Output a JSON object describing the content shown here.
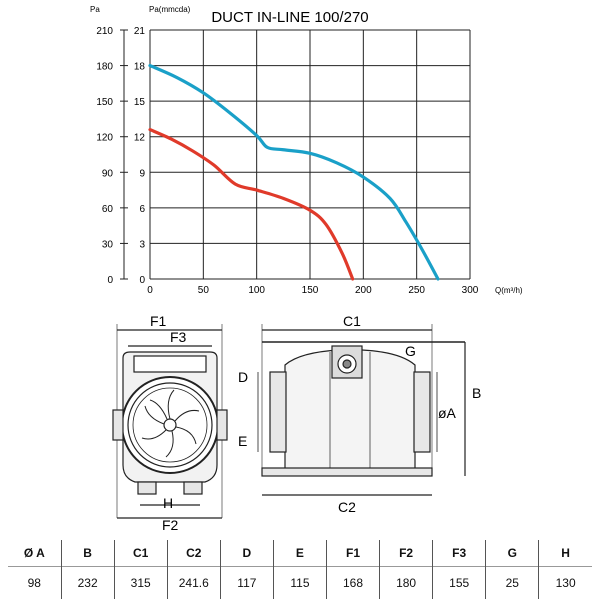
{
  "chart_data": {
    "type": "line",
    "title": "DUCT IN-LINE 100/270",
    "xlabel": "Q(m³/h)",
    "ylabel_left": "Pa",
    "ylabel_right": "Pa(mmcda)",
    "xlim": [
      0,
      300
    ],
    "ylim_pa": [
      0,
      210
    ],
    "ylim_mmcda": [
      0,
      21
    ],
    "x_ticks": [
      "0",
      "50",
      "100",
      "150",
      "200",
      "250",
      "300"
    ],
    "y_ticks_pa": [
      "0",
      "30",
      "60",
      "90",
      "120",
      "150",
      "180",
      "210"
    ],
    "y_ticks_mmcda": [
      "0",
      "3",
      "6",
      "9",
      "12",
      "15",
      "18",
      "21"
    ],
    "grid": true,
    "series": [
      {
        "color": "#1aa0c8",
        "points": [
          [
            0,
            180
          ],
          [
            25,
            170
          ],
          [
            50,
            157
          ],
          [
            75,
            140
          ],
          [
            100,
            121
          ],
          [
            110,
            111
          ],
          [
            125,
            109
          ],
          [
            150,
            106
          ],
          [
            175,
            98
          ],
          [
            200,
            86
          ],
          [
            225,
            68
          ],
          [
            240,
            48
          ],
          [
            255,
            25
          ],
          [
            270,
            0
          ]
        ]
      },
      {
        "color": "#e03a2a",
        "points": [
          [
            0,
            126
          ],
          [
            20,
            118
          ],
          [
            40,
            108
          ],
          [
            60,
            96
          ],
          [
            80,
            80
          ],
          [
            100,
            75
          ],
          [
            125,
            68
          ],
          [
            150,
            58
          ],
          [
            165,
            46
          ],
          [
            180,
            22
          ],
          [
            190,
            0
          ]
        ]
      }
    ]
  },
  "drawing": {
    "front_labels": [
      "F1",
      "F3",
      "H",
      "F2"
    ],
    "side_labels": [
      "C1",
      "G",
      "D",
      "E",
      "B",
      "øA",
      "C2"
    ]
  },
  "table": {
    "headers": [
      "Ø A",
      "B",
      "C1",
      "C2",
      "D",
      "E",
      "F1",
      "F2",
      "F3",
      "G",
      "H"
    ],
    "values": [
      "98",
      "232",
      "315",
      "241.6",
      "117",
      "115",
      "168",
      "180",
      "155",
      "25",
      "130"
    ]
  }
}
